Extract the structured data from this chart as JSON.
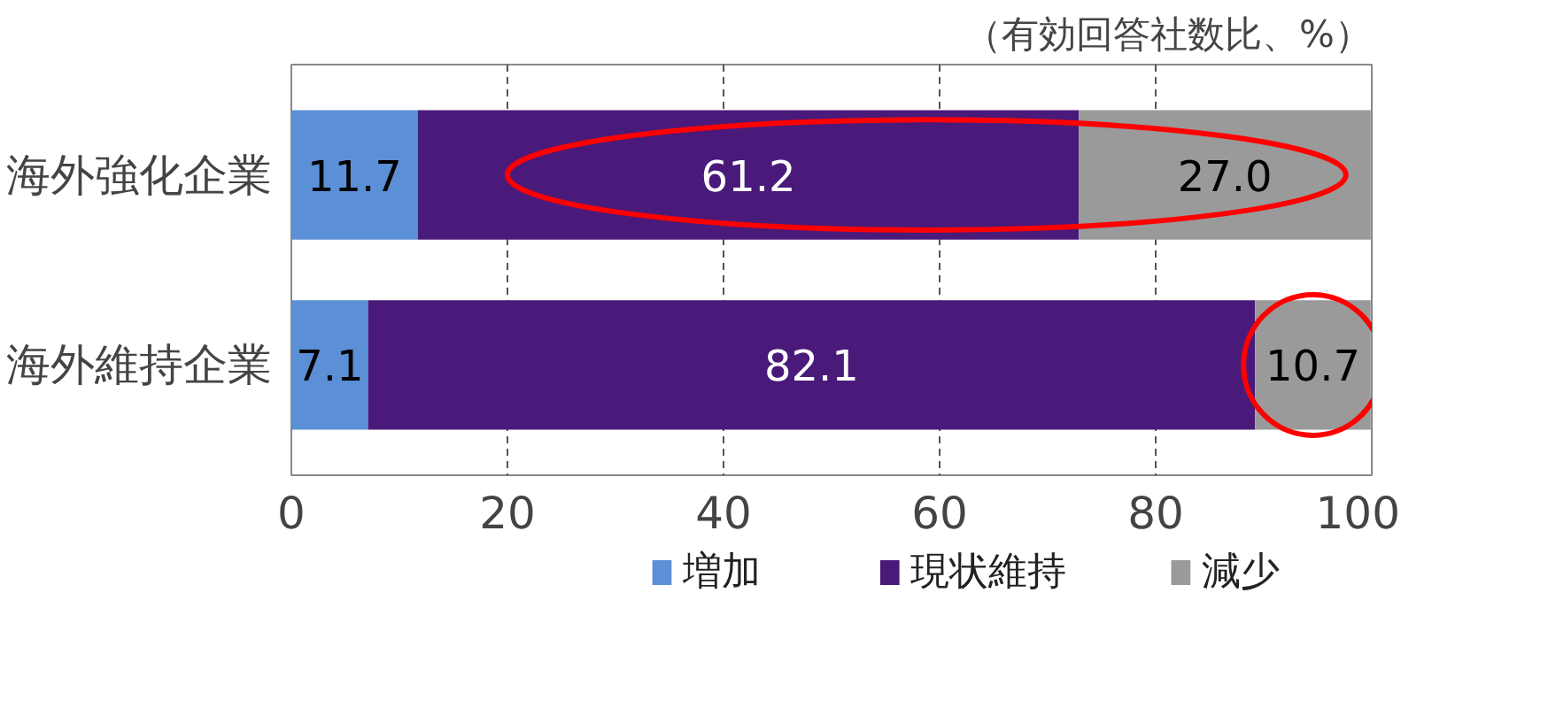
{
  "chart_data": {
    "type": "bar",
    "orientation": "horizontal",
    "stacked": true,
    "title": "（有効回答社数比、%）",
    "categories": [
      "海外強化企業",
      "海外維持企業"
    ],
    "series": [
      {
        "name": "増加",
        "color": "#5b8fd6",
        "values": [
          11.7,
          7.1
        ],
        "value_labels": [
          "11.7",
          "7.1"
        ]
      },
      {
        "name": "現状維持",
        "color": "#4a1a7a",
        "values": [
          61.2,
          82.1
        ],
        "value_labels": [
          "61.2",
          "82.1"
        ]
      },
      {
        "name": "減少",
        "color": "#9a9a9a",
        "values": [
          27.0,
          10.7
        ],
        "value_labels": [
          "27.0",
          "10.7"
        ]
      }
    ],
    "xlim": [
      0,
      100
    ],
    "xticks": [
      0,
      20,
      40,
      60,
      80,
      100
    ],
    "grid": "x",
    "legend": "bottom"
  }
}
